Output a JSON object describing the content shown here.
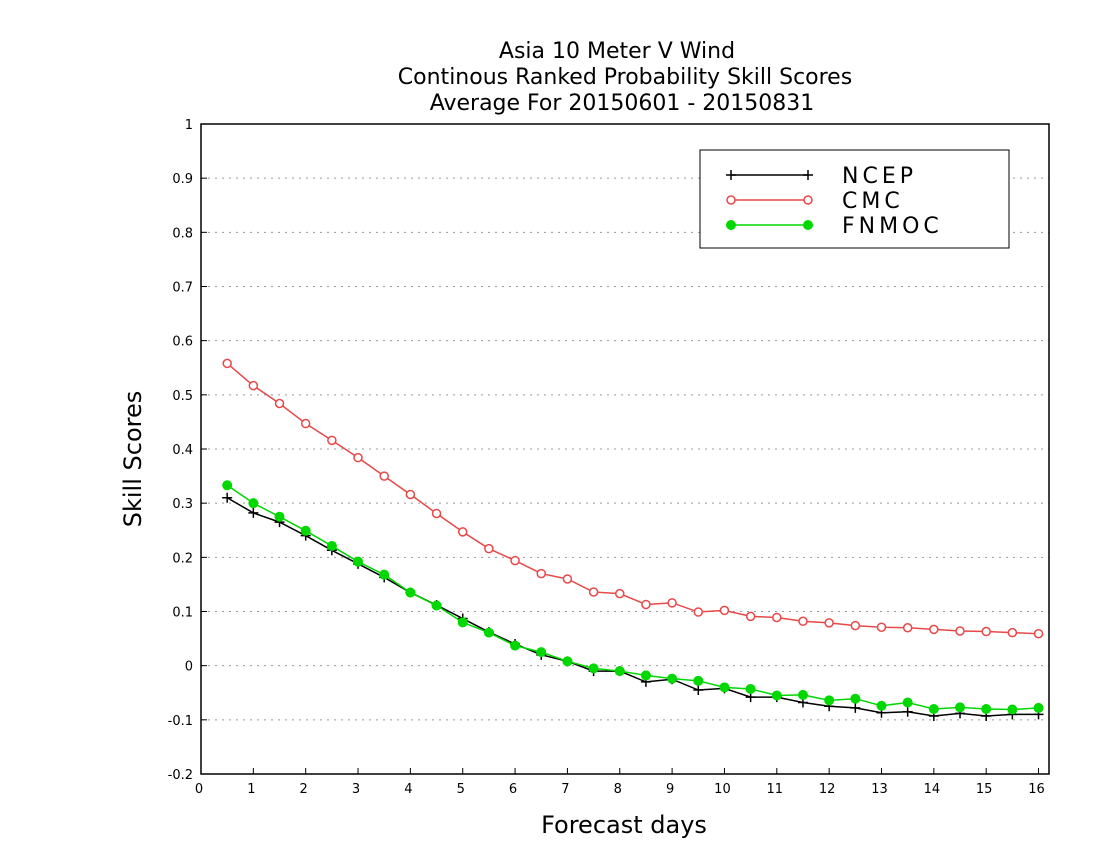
{
  "chart_data": {
    "type": "line",
    "title": [
      "Asia 10 Meter V Wind",
      "Continous Ranked Probability Skill Scores",
      "Average For 20150601 - 20150831"
    ],
    "xlabel": "Forecast days",
    "ylabel": "Skill Scores",
    "xlim": [
      0,
      16.2
    ],
    "ylim": [
      -0.2,
      1
    ],
    "xticks": [
      0,
      1,
      2,
      3,
      4,
      5,
      6,
      7,
      8,
      9,
      10,
      11,
      12,
      13,
      14,
      15,
      16
    ],
    "yticks": [
      -0.2,
      -0.1,
      0,
      0.1,
      0.2,
      0.3,
      0.4,
      0.5,
      0.6,
      0.7,
      0.8,
      0.9,
      1
    ],
    "ytick_labels": [
      "-0.2",
      "-0.1",
      "0",
      "0.1",
      "0.2",
      "0.3",
      "0.4",
      "0.5",
      "0.6",
      "0.7",
      "0.8",
      "0.9",
      "1"
    ],
    "grid": "dotted-horizontal",
    "legend_position": "top-right",
    "x": [
      0.5,
      1,
      1.5,
      2,
      2.5,
      3,
      3.5,
      4,
      4.5,
      5,
      5.5,
      6,
      6.5,
      7,
      7.5,
      8,
      8.5,
      9,
      9.5,
      10,
      10.5,
      11,
      11.5,
      12,
      12.5,
      13,
      13.5,
      14,
      14.5,
      15,
      15.5,
      16
    ],
    "series": [
      {
        "name": "NCEP",
        "color": "#000000",
        "marker": "plus",
        "values": [
          0.31,
          0.282,
          0.265,
          0.24,
          0.213,
          0.188,
          0.163,
          0.135,
          0.112,
          0.087,
          0.062,
          0.04,
          0.02,
          0.008,
          -0.01,
          -0.01,
          -0.03,
          -0.025,
          -0.045,
          -0.042,
          -0.058,
          -0.058,
          -0.068,
          -0.075,
          -0.078,
          -0.087,
          -0.085,
          -0.093,
          -0.088,
          -0.093,
          -0.09,
          -0.09
        ]
      },
      {
        "name": "CMC",
        "color": "#e84848",
        "marker": "open-circle",
        "values": [
          0.558,
          0.517,
          0.484,
          0.447,
          0.416,
          0.384,
          0.35,
          0.316,
          0.281,
          0.247,
          0.216,
          0.194,
          0.17,
          0.16,
          0.136,
          0.133,
          0.113,
          0.116,
          0.099,
          0.102,
          0.091,
          0.089,
          0.082,
          0.079,
          0.074,
          0.071,
          0.07,
          0.067,
          0.064,
          0.063,
          0.061,
          0.059
        ]
      },
      {
        "name": "FNMOC",
        "color": "#00d800",
        "marker": "filled-circle",
        "values": [
          0.333,
          0.3,
          0.275,
          0.249,
          0.221,
          0.192,
          0.168,
          0.135,
          0.111,
          0.08,
          0.061,
          0.037,
          0.025,
          0.008,
          -0.005,
          -0.01,
          -0.018,
          -0.024,
          -0.028,
          -0.04,
          -0.043,
          -0.055,
          -0.054,
          -0.064,
          -0.061,
          -0.074,
          -0.068,
          -0.08,
          -0.077,
          -0.08,
          -0.081,
          -0.078
        ]
      }
    ]
  }
}
